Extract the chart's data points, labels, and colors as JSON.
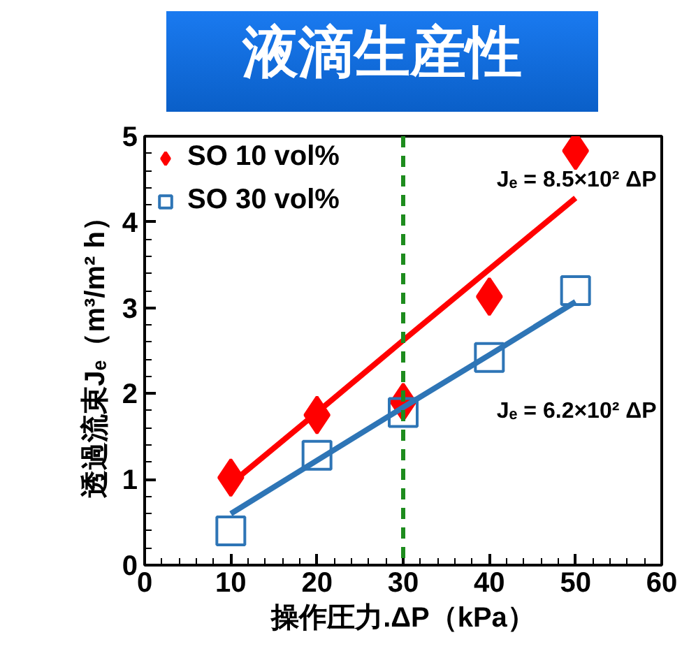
{
  "chart_data": {
    "type": "scatter",
    "title": "液滴生産性",
    "xlabel": "操作圧力.ΔP（kPa）",
    "ylabel": "透過流束Jₑ（m³/m² h）",
    "x": [
      10,
      20,
      30,
      40,
      50
    ],
    "series": [
      {
        "name": "SO 10 vol%",
        "color": "#ff0000",
        "marker": "diamond",
        "values": [
          1.02,
          1.75,
          1.9,
          3.13,
          4.83
        ]
      },
      {
        "name": "SO 30 vol%",
        "color": "#2e75b6",
        "marker": "square",
        "values": [
          0.4,
          1.28,
          1.78,
          2.42,
          3.2
        ]
      },
      {
        "type": "line",
        "color": "#ff0000",
        "values": [
          0.95,
          1.78,
          2.62,
          3.45,
          4.28
        ]
      },
      {
        "type": "line",
        "color": "#2e75b6",
        "values": [
          0.6,
          1.22,
          1.84,
          2.45,
          3.07
        ]
      }
    ],
    "xlim": [
      0,
      60
    ],
    "xticks": [
      0,
      10,
      20,
      30,
      40,
      50,
      60
    ],
    "ylim": [
      0,
      5
    ],
    "yticks": [
      0,
      1,
      2,
      3,
      4,
      5
    ],
    "ref_lines": [
      {
        "axis": "x",
        "value": 30,
        "color": "#1e8c1e",
        "line_style": "dashed"
      }
    ],
    "annotations": [
      "Jₑ = 8.5×10² ΔP",
      "Jₑ = 6.2×10² ΔP"
    ],
    "legend": "top left",
    "grid": false
  }
}
